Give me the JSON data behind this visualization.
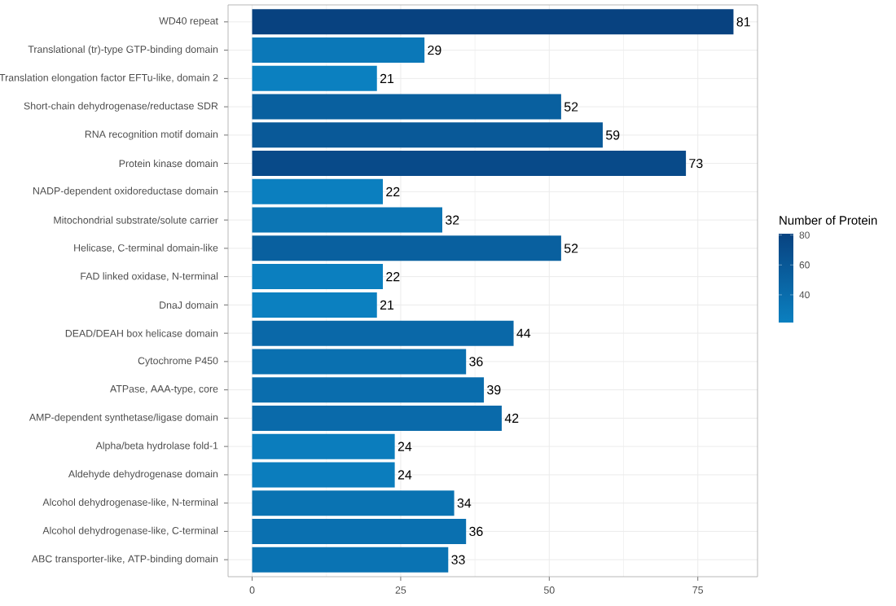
{
  "chart_data": {
    "type": "bar",
    "orientation": "horizontal",
    "clabel": "Number of Protein",
    "categories": [
      "WD40 repeat",
      "Translational (tr)-type GTP-binding domain",
      "Translation elongation factor EFTu-like, domain 2",
      "Short-chain dehydrogenase/reductase SDR",
      "RNA recognition motif domain",
      "Protein kinase domain",
      "NADP-dependent oxidoreductase domain",
      "Mitochondrial substrate/solute carrier",
      "Helicase, C-terminal domain-like",
      "FAD linked oxidase, N-terminal",
      "DnaJ domain",
      "DEAD/DEAH box helicase domain",
      "Cytochrome P450",
      "ATPase, AAA-type, core",
      "AMP-dependent synthetase/ligase domain",
      "Alpha/beta hydrolase fold-1",
      "Aldehyde dehydrogenase domain",
      "Alcohol dehydrogenase-like, N-terminal",
      "Alcohol dehydrogenase-like, C-terminal",
      "ABC transporter-like, ATP-binding domain"
    ],
    "values": [
      81,
      29,
      21,
      52,
      59,
      73,
      22,
      32,
      52,
      22,
      21,
      44,
      36,
      39,
      42,
      24,
      24,
      34,
      36,
      33
    ],
    "colors": [
      "#084280",
      "#0b78b8",
      "#0b80c0",
      "#09609f",
      "#095998",
      "#084a89",
      "#0b7fbf",
      "#0b75b4",
      "#09609f",
      "#0b7fbf",
      "#0b80c0",
      "#0a68a8",
      "#0a70b0",
      "#0a6dad",
      "#0a6aaa",
      "#0b7dbd",
      "#0b7dbd",
      "#0a73b2",
      "#0a70b0",
      "#0a73b3"
    ],
    "data_labels": true,
    "xlim": [
      -4.05,
      85.05
    ],
    "xticks": [
      0,
      25,
      50,
      75
    ],
    "clim": [
      21,
      81
    ],
    "cticks": [
      40,
      60,
      80
    ],
    "grid": true
  }
}
